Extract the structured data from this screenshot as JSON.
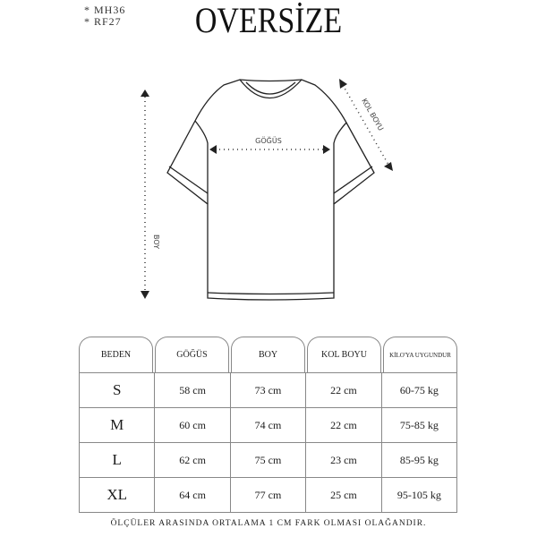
{
  "codes": [
    "* MH36",
    "* RF27"
  ],
  "title": "OVERSİZE",
  "diagram": {
    "chest_label": "GÖĞÜS",
    "length_label": "BOY",
    "sleeve_label": "KOL BOYU"
  },
  "table": {
    "headers": [
      "BEDEN",
      "GÖĞÜS",
      "BOY",
      "KOL BOYU",
      "KİLO'YA UYGUNDUR"
    ],
    "rows": [
      [
        "S",
        "58 cm",
        "73 cm",
        "22  cm",
        "60-75 kg"
      ],
      [
        "M",
        "60 cm",
        "74 cm",
        "22 cm",
        "75-85 kg"
      ],
      [
        "L",
        "62 cm",
        "75 cm",
        "23 cm",
        "85-95 kg"
      ],
      [
        "XL",
        "64 cm",
        "77 cm",
        "25 cm",
        "95-105 kg"
      ]
    ]
  },
  "note": "ÖLÇÜLER ARASINDA ORTALAMA 1 CM FARK OLMASI OLAĞANDIR."
}
